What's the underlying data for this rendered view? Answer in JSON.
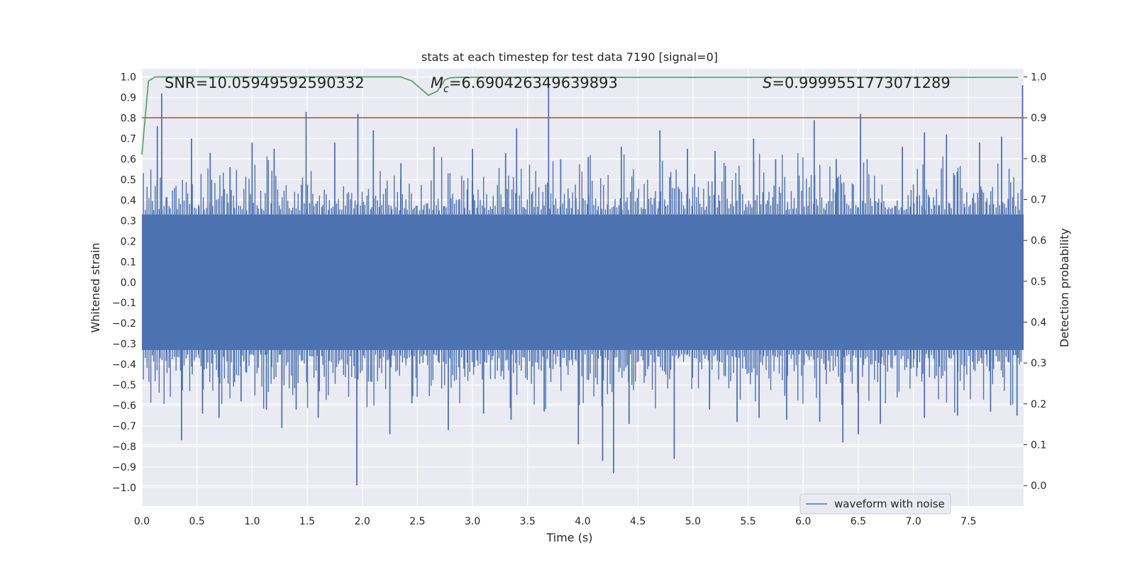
{
  "chart_data": {
    "type": "line",
    "title": "stats at each timestep for test data 7190 [signal=0]",
    "xlabel": "Time (s)",
    "ylabel_left": "Whitened strain",
    "ylabel_right": "Detection probability",
    "xlim": [
      0.0,
      8.0
    ],
    "ylim_left": [
      -1.09,
      1.04
    ],
    "ylim_right": [
      -0.05,
      1.02
    ],
    "x_ticks": [
      "0.0",
      "0.5",
      "1.0",
      "1.5",
      "2.0",
      "2.5",
      "3.0",
      "3.5",
      "4.0",
      "4.5",
      "5.0",
      "5.5",
      "6.0",
      "6.5",
      "7.0",
      "7.5"
    ],
    "x_tick_values": [
      0.0,
      0.5,
      1.0,
      1.5,
      2.0,
      2.5,
      3.0,
      3.5,
      4.0,
      4.5,
      5.0,
      5.5,
      6.0,
      6.5,
      7.0,
      7.5
    ],
    "y_left_ticks": [
      "1.0",
      "0.9",
      "0.8",
      "0.7",
      "0.6",
      "0.5",
      "0.4",
      "0.3",
      "0.2",
      "0.1",
      "0.0",
      "−0.1",
      "−0.2",
      "−0.3",
      "−0.4",
      "−0.5",
      "−0.6",
      "−0.7",
      "−0.8",
      "−0.9",
      "−1.0"
    ],
    "y_left_tick_values": [
      1.0,
      0.9,
      0.8,
      0.7,
      0.6,
      0.5,
      0.4,
      0.3,
      0.2,
      0.1,
      0.0,
      -0.1,
      -0.2,
      -0.3,
      -0.4,
      -0.5,
      -0.6,
      -0.7,
      -0.8,
      -0.9,
      -1.0
    ],
    "y_right_ticks": [
      "1.0",
      "0.9",
      "0.8",
      "0.7",
      "0.6",
      "0.5",
      "0.4",
      "0.3",
      "0.2",
      "0.1",
      "0.0"
    ],
    "y_right_tick_values": [
      1.0,
      0.9,
      0.8,
      0.7,
      0.6,
      0.5,
      0.4,
      0.3,
      0.2,
      0.1,
      0.0
    ],
    "annotations": {
      "snr": "SNR=10.05949592590332",
      "mc_symbol": "M",
      "mc_sub": "c",
      "mc_value": "=6.690426349639893",
      "s_symbol": "S",
      "s_value": "=0.9999551773071289"
    },
    "threshold": {
      "value": 0.9,
      "color": "#c44e52"
    },
    "waveform": {
      "name": "waveform with noise",
      "color": "#4c72b0",
      "band": [
        -0.33,
        0.33
      ],
      "spikes_up": [
        [
          0.14,
          0.76
        ],
        [
          0.18,
          0.92
        ],
        [
          0.45,
          0.7
        ],
        [
          0.62,
          0.63
        ],
        [
          0.8,
          0.56
        ],
        [
          1.0,
          0.68
        ],
        [
          1.2,
          0.65
        ],
        [
          1.49,
          0.83
        ],
        [
          1.75,
          0.68
        ],
        [
          1.96,
          0.82
        ],
        [
          2.1,
          0.74
        ],
        [
          2.35,
          0.58
        ],
        [
          2.65,
          0.66
        ],
        [
          3.0,
          0.65
        ],
        [
          3.3,
          0.63
        ],
        [
          3.4,
          0.75
        ],
        [
          3.69,
          0.97
        ],
        [
          3.8,
          0.6
        ],
        [
          4.05,
          0.61
        ],
        [
          4.35,
          0.66
        ],
        [
          4.7,
          0.74
        ],
        [
          4.95,
          0.65
        ],
        [
          5.2,
          0.64
        ],
        [
          5.55,
          0.7
        ],
        [
          5.75,
          0.6
        ],
        [
          6.1,
          0.79
        ],
        [
          6.3,
          0.6
        ],
        [
          6.52,
          0.82
        ],
        [
          6.9,
          0.66
        ],
        [
          7.1,
          0.73
        ],
        [
          7.3,
          0.72
        ],
        [
          7.6,
          0.68
        ],
        [
          7.8,
          0.71
        ],
        [
          7.99,
          0.96
        ]
      ],
      "spikes_down": [
        [
          0.36,
          -0.77
        ],
        [
          0.55,
          -0.64
        ],
        [
          0.7,
          -0.66
        ],
        [
          0.9,
          -0.58
        ],
        [
          1.13,
          -0.62
        ],
        [
          1.27,
          -0.71
        ],
        [
          1.4,
          -0.62
        ],
        [
          1.6,
          -0.66
        ],
        [
          1.95,
          -0.99
        ],
        [
          2.25,
          -0.74
        ],
        [
          2.45,
          -0.59
        ],
        [
          2.78,
          -0.72
        ],
        [
          3.1,
          -0.64
        ],
        [
          3.35,
          -0.67
        ],
        [
          3.65,
          -0.63
        ],
        [
          3.96,
          -0.79
        ],
        [
          4.18,
          -0.87
        ],
        [
          4.28,
          -0.93
        ],
        [
          4.42,
          -0.69
        ],
        [
          4.83,
          -0.86
        ],
        [
          5.15,
          -0.62
        ],
        [
          5.4,
          -0.68
        ],
        [
          5.6,
          -0.66
        ],
        [
          5.85,
          -0.67
        ],
        [
          6.15,
          -0.68
        ],
        [
          6.36,
          -0.78
        ],
        [
          6.5,
          -0.74
        ],
        [
          6.7,
          -0.69
        ],
        [
          7.1,
          -0.66
        ],
        [
          7.4,
          -0.65
        ],
        [
          7.7,
          -0.63
        ],
        [
          7.94,
          -0.65
        ]
      ]
    },
    "probability": {
      "color": "#55a868",
      "x": [
        0.0,
        0.06,
        0.12,
        0.2,
        0.5,
        1.0,
        1.5,
        2.0,
        2.35,
        2.45,
        2.6,
        2.68,
        2.75,
        2.8,
        2.88,
        3.0,
        3.5,
        4.0,
        5.0,
        6.0,
        7.0,
        7.95
      ],
      "y": [
        0.81,
        0.99,
        1.0,
        1.0,
        1.0,
        1.0,
        1.0,
        1.0,
        1.0,
        0.99,
        0.955,
        0.965,
        0.993,
        0.998,
        0.999,
        0.999,
        0.999,
        0.999,
        0.999,
        0.999,
        0.999,
        0.999
      ]
    },
    "legend": {
      "label": "waveform with noise",
      "placement": "lower-right"
    }
  }
}
